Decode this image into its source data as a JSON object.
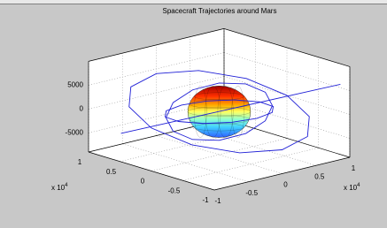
{
  "chart_data": {
    "type": "line3d",
    "title": "Spacecraft Trajectories around Mars",
    "xlim": [
      -10000,
      10000
    ],
    "ylim": [
      -10000,
      10000
    ],
    "zlim": [
      -9000,
      10000
    ],
    "xticks": [
      {
        "value": -10000,
        "label": "-1"
      },
      {
        "value": -5000,
        "label": "-0.5"
      },
      0,
      {
        "value": 5000,
        "label": "0.5"
      },
      {
        "value": 10000,
        "label": "1"
      }
    ],
    "yticks": [
      {
        "value": -10000,
        "label": "-1"
      },
      {
        "value": -5000,
        "label": "-0.5"
      },
      0,
      {
        "value": 5000,
        "label": "0.5"
      },
      {
        "value": 10000,
        "label": "1"
      }
    ],
    "zticks": [
      -5000,
      0,
      5000
    ],
    "x_multiplier": {
      "base": "x 10",
      "exponent": "4"
    },
    "y_multiplier": {
      "base": "x 10",
      "exponent": "4"
    },
    "grid": true,
    "sphere": {
      "radius": 4500
    },
    "series": [
      {
        "color": "#1f1fd6",
        "x": [
          10000,
          8660,
          5000,
          0,
          -5000,
          -8660,
          -10000,
          -8660,
          -5000,
          0,
          5000,
          8660,
          10000
        ],
        "y": [
          0,
          5000,
          8660,
          10000,
          8660,
          5000,
          0,
          -5000,
          -8660,
          -10000,
          -8660,
          -5000,
          0
        ],
        "z": [
          0,
          2000,
          3464,
          4000,
          3464,
          2000,
          0,
          -2000,
          -3464,
          -4000,
          -3464,
          -2000,
          0
        ]
      },
      {
        "color": "#1f1fd6",
        "x": [
          6000,
          5196,
          3000,
          0,
          -3000,
          -5196,
          -6000,
          -5196,
          -3000,
          0,
          3000,
          5196,
          6000
        ],
        "y": [
          -2000,
          -1732,
          -1000,
          0,
          1000,
          1732,
          2000,
          1732,
          1000,
          0,
          -1000,
          -1732,
          -2000
        ],
        "z": [
          0,
          3000,
          5196,
          6000,
          5196,
          3000,
          0,
          -3000,
          -5196,
          -6000,
          -5196,
          -3000,
          0
        ]
      },
      {
        "color": "#1f1fd6",
        "x": [
          6000,
          5196,
          3000,
          0,
          -3000,
          -5196,
          -6000,
          -5196,
          -3000,
          0,
          3000,
          5196,
          6000
        ],
        "y": [
          0,
          3000,
          5196,
          6000,
          5196,
          3000,
          0,
          -3000,
          -5196,
          -6000,
          -5196,
          -3000,
          0
        ],
        "z": [
          0,
          -500,
          -866,
          -1000,
          -866,
          -500,
          0,
          500,
          866,
          1000,
          866,
          500,
          0
        ]
      },
      {
        "color": "#1f1fd6",
        "x": [
          -8000,
          10000
        ],
        "y": [
          7000,
          -8500
        ],
        "z": [
          -4600,
          5700
        ]
      }
    ]
  }
}
